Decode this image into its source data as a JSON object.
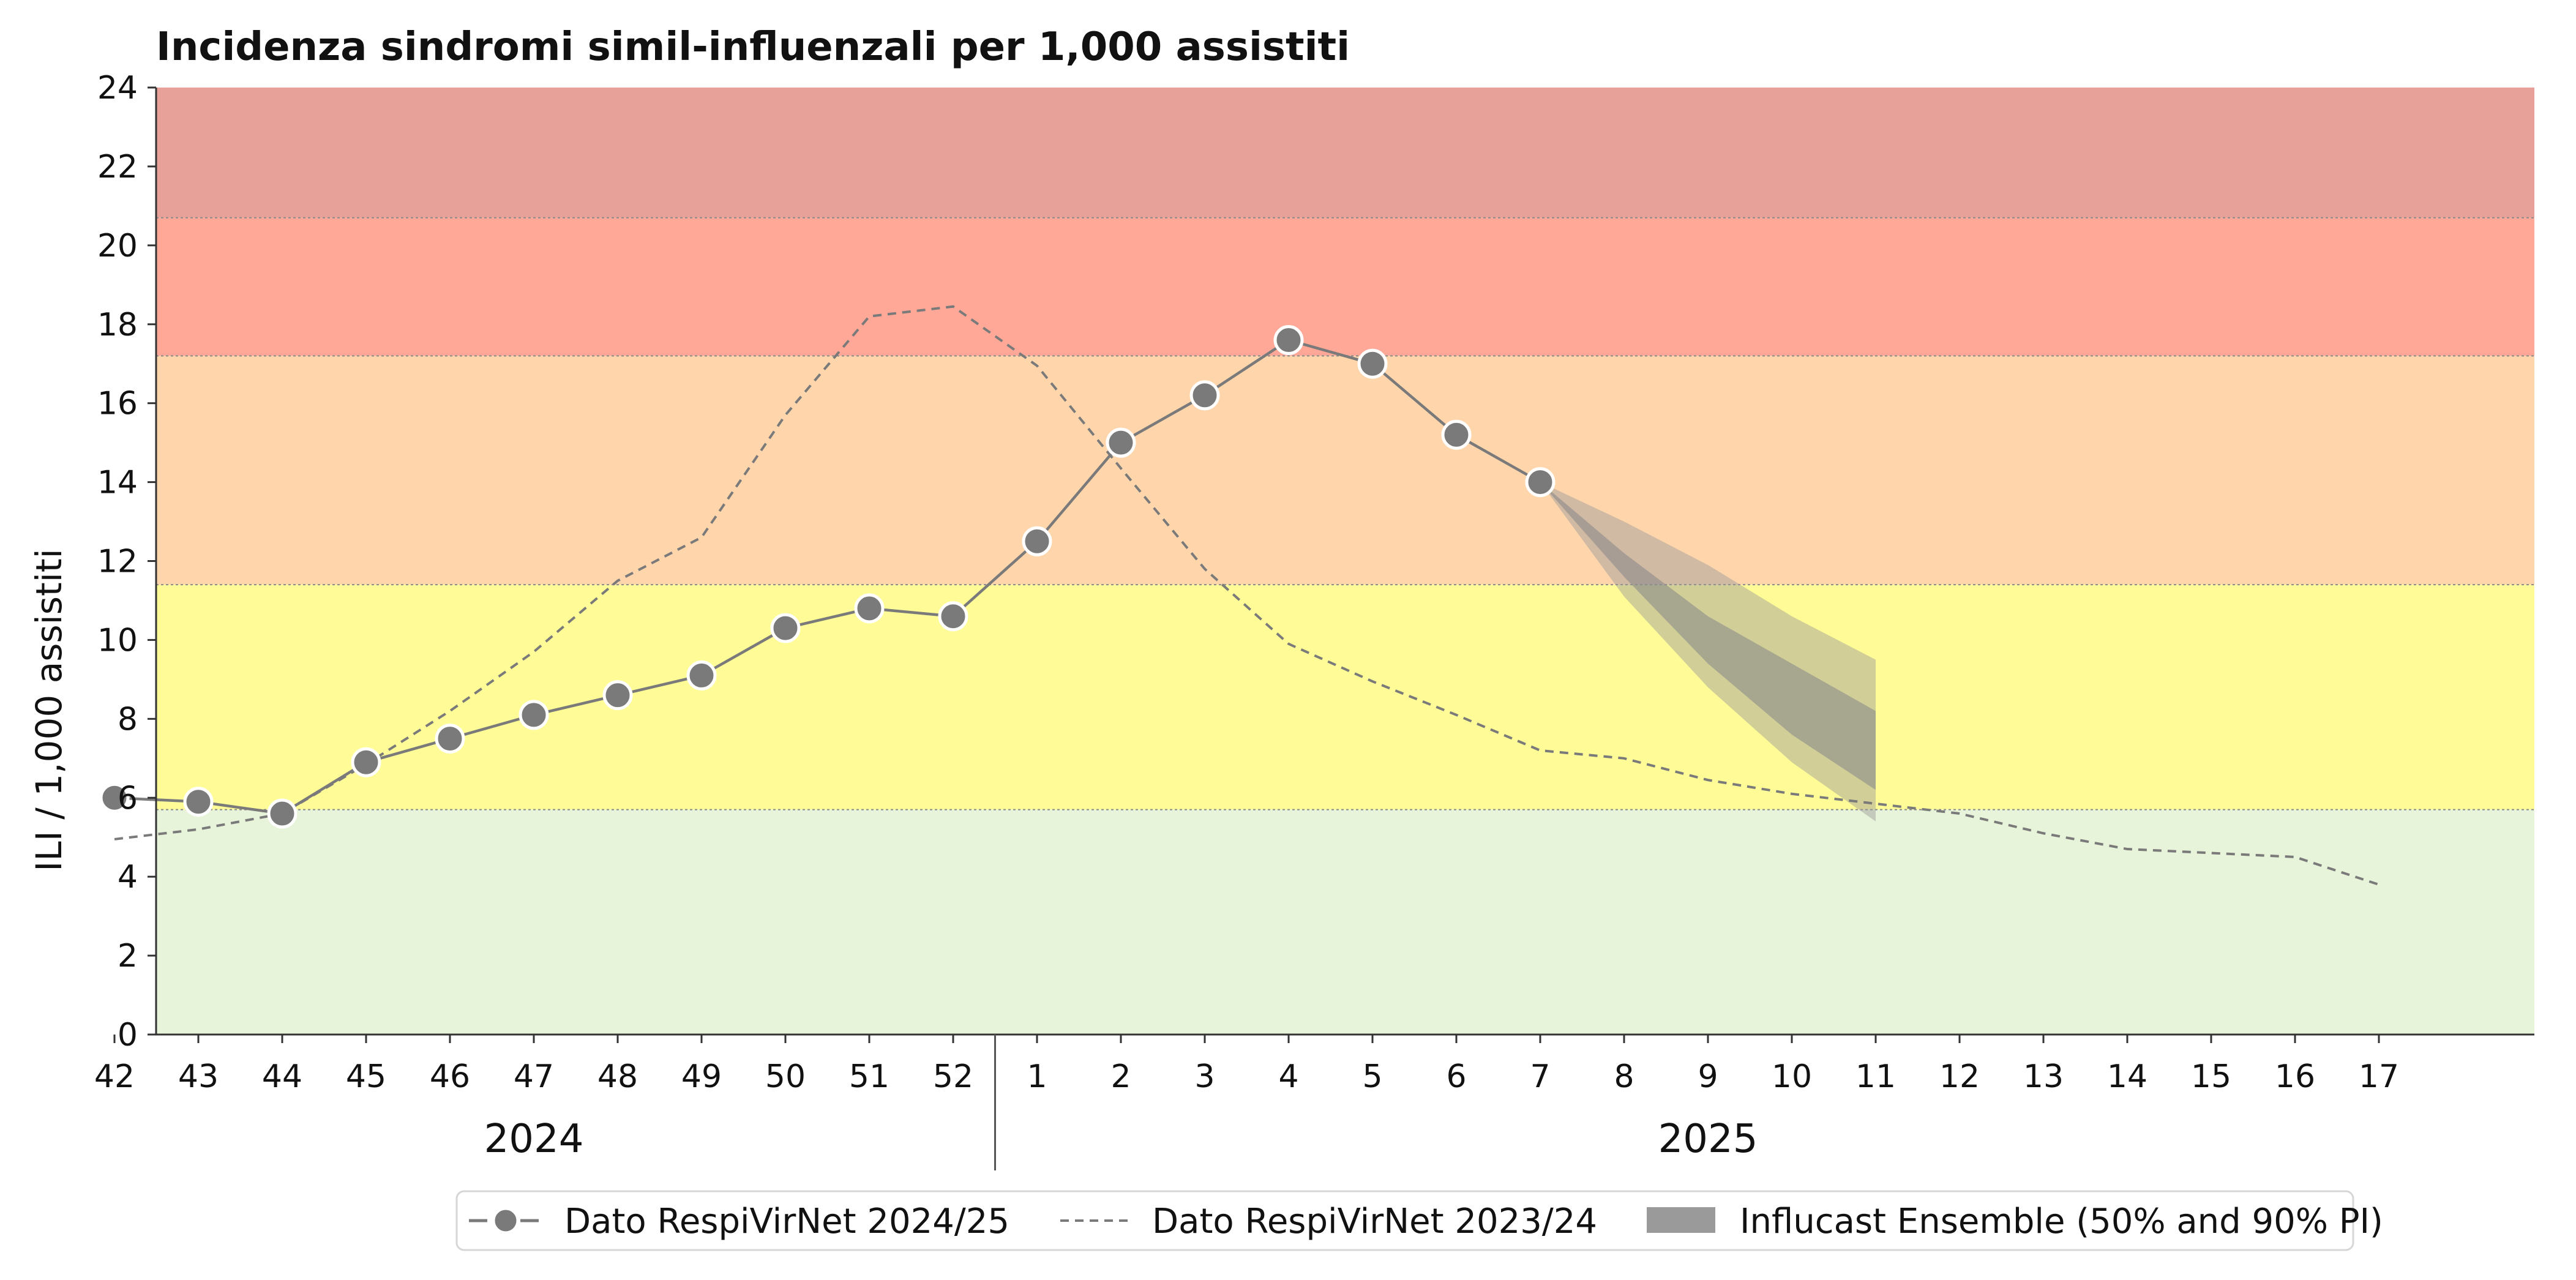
{
  "chart_data": {
    "type": "line",
    "title": "Incidenza sindromi simil-influenzali per 1,000 assistiti",
    "ylabel": "ILI / 1,000 assistiti",
    "xlabel": "",
    "ylim": [
      0,
      24
    ],
    "yticks": [
      "0",
      "2",
      "4",
      "6",
      "8",
      "10",
      "12",
      "14",
      "16",
      "18",
      "20",
      "22",
      "24"
    ],
    "x": [
      "42",
      "43",
      "44",
      "45",
      "46",
      "47",
      "48",
      "49",
      "50",
      "51",
      "52",
      "1",
      "2",
      "3",
      "4",
      "5",
      "6",
      "7",
      "8",
      "9",
      "10",
      "11",
      "12",
      "13",
      "14",
      "15",
      "16",
      "17"
    ],
    "year_labels": [
      {
        "label": "2024",
        "from": "42",
        "to": "52"
      },
      {
        "label": "2025",
        "from": "1",
        "to": "17"
      }
    ],
    "grid": false,
    "legend_position": "bottom",
    "thresholds": [
      {
        "from": 0,
        "to": 5.7,
        "color": "#e8f4d9"
      },
      {
        "from": 5.7,
        "to": 11.4,
        "color": "#fffb96"
      },
      {
        "from": 11.4,
        "to": 17.2,
        "color": "#ffd5ab"
      },
      {
        "from": 17.2,
        "to": 20.7,
        "color": "#ffa898"
      },
      {
        "from": 20.7,
        "to": 24,
        "color": "#e8a198"
      }
    ],
    "series": [
      {
        "name": "Dato RespiVirNet 2024/25",
        "style": "solid-markers",
        "color": "#7a7a7a",
        "values": [
          6.0,
          5.9,
          5.6,
          6.9,
          7.5,
          8.1,
          8.6,
          9.1,
          10.3,
          10.8,
          10.6,
          12.5,
          15.0,
          16.2,
          17.6,
          17.0,
          15.2,
          14.0,
          null,
          null,
          null,
          null,
          null,
          null,
          null,
          null,
          null,
          null
        ]
      },
      {
        "name": "Dato RespiVirNet 2023/24",
        "style": "dashed",
        "color": "#7a7a7a",
        "values": [
          4.95,
          5.2,
          5.6,
          6.85,
          8.2,
          9.7,
          11.5,
          12.6,
          15.7,
          18.2,
          18.45,
          16.95,
          14.35,
          11.8,
          9.9,
          8.95,
          8.1,
          7.2,
          7.0,
          6.45,
          6.1,
          5.85,
          5.6,
          5.1,
          4.7,
          4.6,
          4.5,
          3.8
        ]
      },
      {
        "name": "Influcast Ensemble (50% and 90% PI)",
        "style": "band",
        "color": "#9a9a9a",
        "x": [
          "7",
          "8",
          "9",
          "10",
          "11"
        ],
        "pi90_low": [
          14.0,
          11.1,
          8.8,
          6.9,
          5.4
        ],
        "pi90_high": [
          14.0,
          13.0,
          11.9,
          10.6,
          9.5
        ],
        "pi50_low": [
          14.0,
          11.6,
          9.4,
          7.6,
          6.2
        ],
        "pi50_high": [
          14.0,
          12.2,
          10.6,
          9.4,
          8.2
        ]
      }
    ]
  }
}
